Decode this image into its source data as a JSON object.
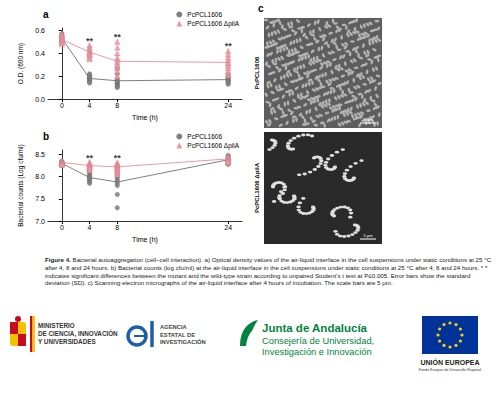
{
  "chart_data": [
    {
      "type": "scatter",
      "title": "a",
      "x_label": "Time (h)",
      "y_label": "O.D. (600 nm)",
      "xlim": [
        -2,
        26
      ],
      "xticks": [
        0,
        4,
        8,
        24
      ],
      "ylim": [
        0,
        0.62
      ],
      "yticks": [
        {
          "value": 0,
          "label": "0.0"
        },
        0.2,
        0.4,
        0.6
      ],
      "legend": "top-right",
      "grid": false,
      "series": [
        {
          "name": "PcPCL1606",
          "color": "#808080",
          "marker": "circle",
          "x": [
            0,
            4,
            8,
            24
          ],
          "values": [
            [
              0.56,
              0.55,
              0.54,
              0.53,
              0.53,
              0.52,
              0.51,
              0.5,
              0.49,
              0.57
            ],
            [
              0.22,
              0.2,
              0.19,
              0.18,
              0.18,
              0.17,
              0.16,
              0.15,
              0.14,
              0.21
            ],
            [
              0.27,
              0.22,
              0.18,
              0.16,
              0.15,
              0.14,
              0.13,
              0.12,
              0.11,
              0.1
            ],
            [
              0.22,
              0.2,
              0.18,
              0.17,
              0.16,
              0.16,
              0.15,
              0.14,
              0.13,
              0.19
            ]
          ],
          "means": [
            0.53,
            0.18,
            0.16,
            0.17
          ]
        },
        {
          "name": "PcPCL1606 ΔpilA",
          "color": "#e99aa6",
          "marker": "triangle",
          "x": [
            0,
            4,
            8,
            24
          ],
          "values": [
            [
              0.57,
              0.56,
              0.55,
              0.54,
              0.53,
              0.52,
              0.51,
              0.5,
              0.49,
              0.48
            ],
            [
              0.47,
              0.45,
              0.44,
              0.42,
              0.41,
              0.4,
              0.39,
              0.38,
              0.36,
              0.35
            ],
            [
              0.5,
              0.45,
              0.4,
              0.36,
              0.34,
              0.32,
              0.3,
              0.27,
              0.24,
              0.2
            ],
            [
              0.42,
              0.39,
              0.36,
              0.34,
              0.32,
              0.31,
              0.29,
              0.27,
              0.24,
              0.21
            ]
          ],
          "means": [
            0.52,
            0.41,
            0.33,
            0.32
          ]
        }
      ],
      "annotations": [
        {
          "text": "**",
          "x": 4,
          "y": 0.51
        },
        {
          "text": "**",
          "x": 8,
          "y": 0.54
        },
        {
          "text": "**",
          "x": 24,
          "y": 0.46
        }
      ]
    },
    {
      "type": "scatter",
      "title": "b",
      "x_label": "Time (h)",
      "y_label": "Bacterial counts (Log cfu/ml)",
      "xlim": [
        -2,
        26
      ],
      "xticks": [
        0,
        4,
        8,
        24
      ],
      "ylim": [
        7.0,
        8.6
      ],
      "yticks": [
        {
          "value": 7,
          "label": "7.0"
        },
        7.5,
        {
          "value": 8,
          "label": "8.0"
        },
        8.5
      ],
      "legend": "top-right",
      "grid": false,
      "series": [
        {
          "name": "PcPCL1606",
          "color": "#808080",
          "marker": "circle",
          "x": [
            0,
            4,
            8,
            24
          ],
          "values": [
            [
              8.35,
              8.33,
              8.32,
              8.31,
              8.3,
              8.3,
              8.29,
              8.28,
              8.27,
              8.25
            ],
            [
              8.15,
              8.1,
              8.05,
              8.02,
              8.0,
              7.98,
              7.95,
              7.92,
              7.88,
              7.85
            ],
            [
              8.2,
              8.1,
              8.05,
              8.0,
              7.95,
              7.9,
              7.85,
              7.8,
              7.6,
              7.3
            ],
            [
              8.48,
              8.45,
              8.42,
              8.4,
              8.38,
              8.37,
              8.35,
              8.33,
              8.3,
              8.28
            ]
          ],
          "means": [
            8.3,
            7.98,
            7.88,
            8.38
          ]
        },
        {
          "name": "PcPCL1606 ΔpilA",
          "color": "#e99aa6",
          "marker": "triangle",
          "x": [
            0,
            4,
            8,
            24
          ],
          "values": [
            [
              8.36,
              8.34,
              8.33,
              8.32,
              8.31,
              8.3,
              8.3,
              8.29,
              8.28,
              8.27
            ],
            [
              8.33,
              8.3,
              8.28,
              8.27,
              8.25,
              8.24,
              8.22,
              8.2,
              8.18,
              8.15
            ],
            [
              8.32,
              8.3,
              8.27,
              8.25,
              8.22,
              8.2,
              8.18,
              8.15,
              8.1,
              8.05
            ],
            [
              8.46,
              8.44,
              8.42,
              8.41,
              8.4,
              8.39,
              8.38,
              8.36,
              8.34,
              8.32
            ]
          ],
          "means": [
            8.32,
            8.25,
            8.22,
            8.4
          ]
        }
      ],
      "annotations": [
        {
          "text": "**",
          "x": 4,
          "y": 8.42
        },
        {
          "text": "**",
          "x": 8,
          "y": 8.42
        }
      ]
    }
  ],
  "panel_c": {
    "label": "c",
    "images": [
      {
        "label": "PcPCL1606",
        "scale_bar": "5 μm"
      },
      {
        "label": "PcPCL1606 ΔpilA",
        "scale_bar": "5 μm"
      }
    ]
  },
  "caption": {
    "label": "Figure 4.",
    "text": "Bacterial autoaggregation (cell–cell interaction). a) Optical density values of the air-liquid interface in the cell suspensions under static conditions at 25 °C after 4, 8 and 24 hours. b) Bacterial counts (log cfu/ml) at the air-liquid interface in the cell suspensions under static conditions at 25 °C after 4, 8 and 24 hours. * * indicates significant differences between the mutant and the wild-type strain according to unpaired Student's t test at P≤0.005. Error bars show the standard deviation (SD). c) Scanning electron micrographs of the air-liquid interface after 4 hours of incubation. The scale bars are 5 μm."
  },
  "logos": {
    "ministerio": [
      "MINISTERIO",
      "DE CIENCIA, INNOVACIÓN",
      "Y UNIVERSIDADES"
    ],
    "agencia": [
      "AGENCIA",
      "ESTATAL DE",
      "INVESTIGACIÓN"
    ],
    "junta": [
      "Junta de Andalucía",
      "Consejería de Universidad,",
      "Investigación e Innovación"
    ],
    "union": [
      "UNIÓN EUROPEA",
      "Fondo Europeo de Desarrollo Regional"
    ]
  }
}
